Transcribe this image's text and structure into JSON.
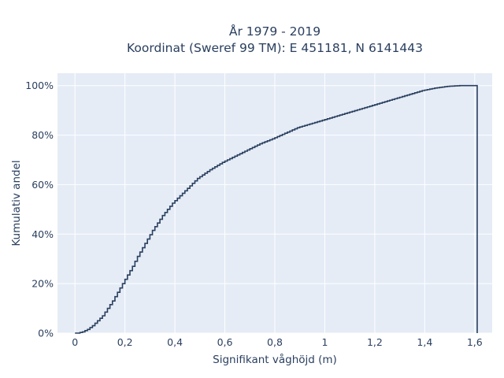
{
  "chart_data": {
    "type": "line",
    "line_shape": "step",
    "title_line1": "År 1979 - 2019",
    "title_line2": "Koordinat (Sweref 99 TM): E 451181, N 6141443",
    "xlabel": "Signifikant våghöjd (m)",
    "ylabel": "Kumulativ andel",
    "xlim": [
      -0.07,
      1.67
    ],
    "ylim": [
      0,
      1.05
    ],
    "x_ticks": [
      0,
      0.2,
      0.4,
      0.6,
      0.8,
      1.0,
      1.2,
      1.4,
      1.6
    ],
    "x_tick_labels": [
      "0",
      "0,2",
      "0,4",
      "0,6",
      "0,8",
      "1",
      "1,2",
      "1,4",
      "1,6"
    ],
    "y_ticks": [
      0,
      0.2,
      0.4,
      0.6,
      0.8,
      1.0
    ],
    "y_tick_labels": [
      "0%",
      "20%",
      "40%",
      "60%",
      "80%",
      "100%"
    ],
    "grid": true,
    "colors": {
      "line": "#2a3f5f",
      "plot_bg": "#e5ecf6",
      "grid": "#ffffff",
      "text": "#2a3f5f"
    },
    "series": [
      {
        "x": [
          0.0,
          0.02,
          0.04,
          0.06,
          0.08,
          0.1,
          0.12,
          0.14,
          0.16,
          0.18,
          0.2,
          0.22,
          0.24,
          0.26,
          0.28,
          0.3,
          0.32,
          0.34,
          0.36,
          0.38,
          0.4,
          0.45,
          0.5,
          0.55,
          0.6,
          0.65,
          0.7,
          0.75,
          0.8,
          0.9,
          1.0,
          1.1,
          1.2,
          1.3,
          1.35,
          1.4,
          1.45,
          1.5,
          1.55,
          1.6,
          1.61
        ],
        "y": [
          0.0,
          0.0,
          0.005,
          0.015,
          0.03,
          0.05,
          0.07,
          0.1,
          0.13,
          0.165,
          0.2,
          0.235,
          0.27,
          0.31,
          0.345,
          0.38,
          0.415,
          0.445,
          0.475,
          0.5,
          0.525,
          0.575,
          0.625,
          0.66,
          0.69,
          0.715,
          0.74,
          0.765,
          0.785,
          0.83,
          0.86,
          0.89,
          0.92,
          0.95,
          0.965,
          0.98,
          0.99,
          0.997,
          1.0,
          1.0,
          1.0
        ]
      }
    ]
  }
}
